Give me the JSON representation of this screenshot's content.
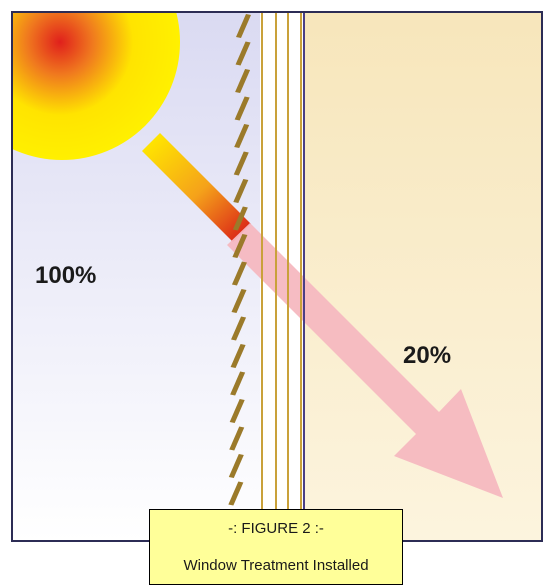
{
  "diagram": {
    "incoming_label": "100%",
    "transmitted_label": "20%"
  },
  "caption": {
    "title": "-:  FIGURE 2  :-",
    "subtitle": "Window Treatment Installed"
  },
  "colors": {
    "outdoor_top": "#dadaf2",
    "outdoor_bottom": "#ffffff",
    "indoor": "#f9ebc5",
    "sun_core": "#e0201c",
    "sun_outer": "#ffe800",
    "blind_slat": "#9b7a2a",
    "window_pane": "#c9a13a",
    "arrow_pink": "#f6b8c0",
    "caption_bg": "#ffff99"
  }
}
